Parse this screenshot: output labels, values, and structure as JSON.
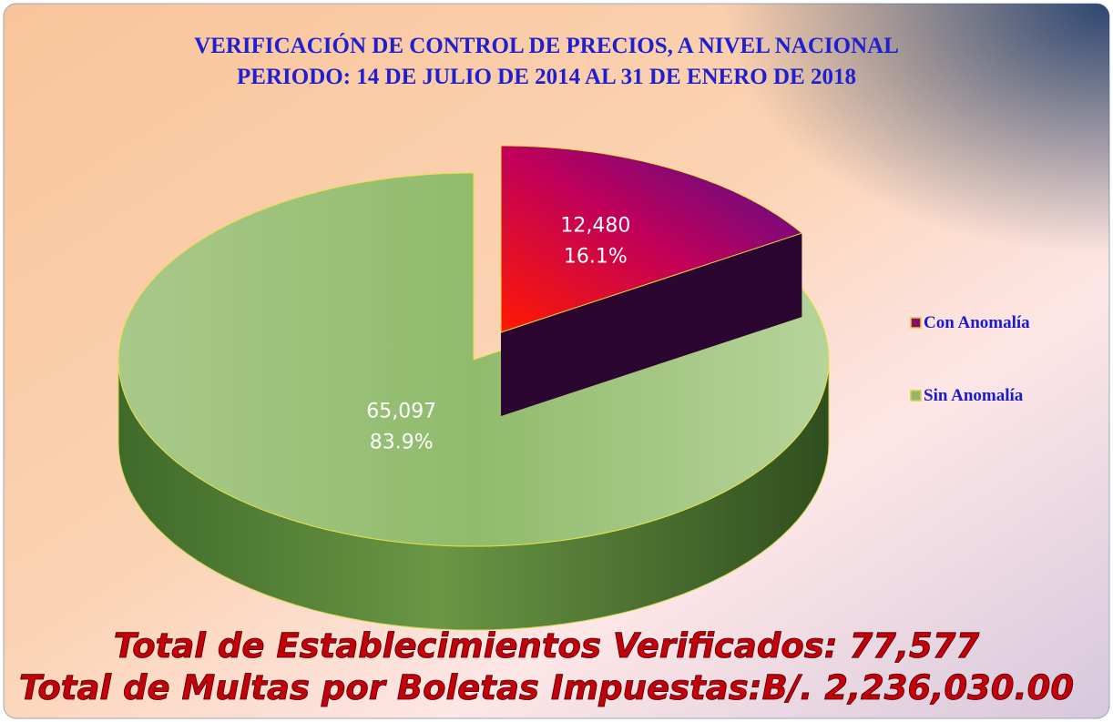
{
  "chart_data": {
    "type": "pie",
    "title": "VERIFICACIÓN DE CONTROL DE PRECIOS, A NIVEL NACIONAL",
    "subtitle": "PERIODO:  14 DE JULIO DE 2014 AL 31 DE ENERO DE 2018",
    "categories": [
      "Con Anomalía",
      "Sin Anomalía"
    ],
    "values": [
      12480,
      65097
    ],
    "value_labels": [
      "12,480",
      "65,097"
    ],
    "percentages": [
      16.1,
      83.9
    ],
    "percentage_labels": [
      "16.1%",
      "83.9%"
    ],
    "colors": [
      "#8b0a6e",
      "#8fb86a"
    ],
    "legend": "right",
    "annotations": [
      "Total de Establecimientos Verificados:  77,577",
      "Total de Multas por Boletas Impuestas:B/. 2,236,030.00"
    ]
  }
}
